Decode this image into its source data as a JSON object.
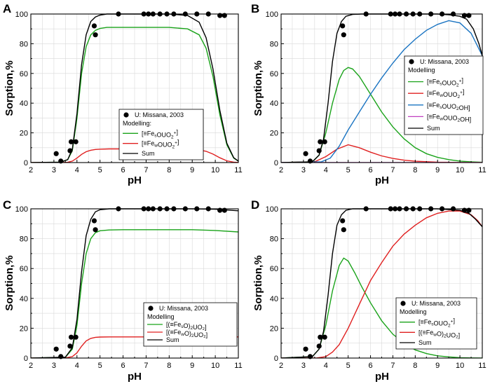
{
  "figure": {
    "x_axis_label": "pH",
    "y_axis_label": "Sorption,%",
    "x_ticks": [
      "2",
      "3",
      "4",
      "5",
      "6",
      "7",
      "8",
      "9",
      "10",
      "11"
    ],
    "y_ticks": [
      "0",
      "20",
      "40",
      "60",
      "80",
      "100"
    ],
    "xlim": [
      2,
      11
    ],
    "ylim": [
      0,
      100
    ]
  },
  "colors": {
    "data": "#000000",
    "sum": "#000000",
    "green": "#1aa31a",
    "red": "#e02020",
    "blue": "#1a74c2",
    "magenta": "#c040c0",
    "grid": "#d9d9d9"
  },
  "panels": [
    {
      "letter": "A",
      "legend": {
        "data_label": "U: Missana, 2003",
        "modelling_label": "Modelling:",
        "items": [
          {
            "text": "[≡Fe",
            "sub": "s",
            "rest": "OUO",
            "sub2": "2",
            "sup": "+",
            "end": "]",
            "color": "green"
          },
          {
            "text": "[≡Fe",
            "sub": "w",
            "rest": "OUO",
            "sub2": "2",
            "sup": "+",
            "end": "]",
            "color": "red"
          },
          {
            "text": "Sum",
            "sub": "",
            "rest": "",
            "sub2": "",
            "sup": "",
            "end": "",
            "color": "sum"
          }
        ]
      }
    },
    {
      "letter": "B",
      "legend": {
        "data_label": "U: Missana, 2003",
        "modelling_label": "Modelling",
        "items": [
          {
            "text": "[≡Fe",
            "sub": "s",
            "rest": "OUO",
            "sub2": "2",
            "sup": "+",
            "end": "]",
            "color": "green"
          },
          {
            "text": "[≡Fe",
            "sub": "w",
            "rest": "OUO",
            "sub2": "2",
            "sup": "+",
            "end": "]",
            "color": "red"
          },
          {
            "text": "[≡Fe",
            "sub": "s",
            "rest": "OUO",
            "sub2": "2",
            "sup": "",
            "end": "OH]",
            "color": "blue"
          },
          {
            "text": "[≡Fe",
            "sub": "w",
            "rest": "OUO",
            "sub2": "2",
            "sup": "",
            "end": "OH]",
            "color": "magenta"
          },
          {
            "text": "Sum",
            "sub": "",
            "rest": "",
            "sub2": "",
            "sup": "",
            "end": "",
            "color": "sum"
          }
        ]
      }
    },
    {
      "letter": "C",
      "legend": {
        "data_label": "U: Missana, 2003",
        "modelling_label": "Modelling",
        "items": [
          {
            "text": "[(≡Fe",
            "sub": "s",
            "rest": "O)",
            "sub2": "2",
            "sup": "",
            "end": "UO₂]",
            "color": "green"
          },
          {
            "text": "[(≡Fe",
            "sub": "w",
            "rest": "O)",
            "sub2": "2",
            "sup": "",
            "end": "UO₂]",
            "color": "red"
          },
          {
            "text": "Sum",
            "sub": "",
            "rest": "",
            "sub2": "",
            "sup": "",
            "end": "",
            "color": "sum"
          }
        ]
      }
    },
    {
      "letter": "D",
      "legend": {
        "data_label": "U: Missana, 2003",
        "modelling_label": "Modelling",
        "items": [
          {
            "text": "[≡Fe",
            "sub": "s",
            "rest": "OUO",
            "sub2": "2",
            "sup": "+",
            "end": "]",
            "color": "green"
          },
          {
            "text": "[(≡Fe",
            "sub": "w",
            "rest": "O)",
            "sub2": "2",
            "sup": "",
            "end": "UO₂]",
            "color": "red"
          },
          {
            "text": "Sum",
            "sub": "",
            "rest": "",
            "sub2": "",
            "sup": "",
            "end": "",
            "color": "sum"
          }
        ]
      }
    }
  ],
  "chart_data": [
    {
      "panel": "A",
      "type": "scatter+line",
      "xlabel": "pH",
      "ylabel": "Sorption,%",
      "xlim": [
        2,
        11
      ],
      "ylim": [
        0,
        100
      ],
      "points": {
        "name": "U: Missana, 2003",
        "x": [
          3.1,
          3.3,
          3.7,
          3.75,
          3.95,
          4.75,
          4.8,
          5.8,
          6.9,
          7.1,
          7.3,
          7.6,
          7.9,
          8.2,
          8.7,
          9.2,
          9.7,
          10.2,
          10.4
        ],
        "y": [
          6,
          1,
          8,
          14,
          14,
          92,
          86,
          100,
          100,
          100,
          100,
          100,
          100,
          100,
          100,
          100,
          100,
          99,
          99
        ]
      },
      "series": [
        {
          "name": "[≡FesOUO2+]",
          "color": "green",
          "x": [
            2,
            3.3,
            3.6,
            3.8,
            4.0,
            4.2,
            4.4,
            4.6,
            4.8,
            5.0,
            5.3,
            6,
            7,
            8,
            8.8,
            9.3,
            9.6,
            9.9,
            10.2,
            10.5,
            10.8,
            11
          ],
          "y": [
            0,
            0.3,
            2,
            8,
            30,
            60,
            78,
            86,
            89,
            90.3,
            91,
            91,
            91,
            91,
            90,
            86,
            77,
            58,
            32,
            12,
            3,
            1
          ]
        },
        {
          "name": "[≡FewOUO2+]",
          "color": "red",
          "x": [
            2,
            3.3,
            3.6,
            3.8,
            4.0,
            4.2,
            4.4,
            4.6,
            4.8,
            5.0,
            5.4,
            6,
            7,
            8,
            8.8,
            9.3,
            9.6,
            9.9,
            10.2,
            10.5,
            10.8,
            11
          ],
          "y": [
            0,
            0,
            0.2,
            1,
            3,
            5.5,
            7.3,
            8.3,
            8.8,
            9,
            9.2,
            9.2,
            9.2,
            9.2,
            9,
            8.5,
            7.6,
            5.7,
            3.2,
            1.2,
            0.3,
            0.1
          ]
        },
        {
          "name": "Sum",
          "color": "sum",
          "x": [
            2,
            3.3,
            3.6,
            3.8,
            4.0,
            4.2,
            4.4,
            4.6,
            4.8,
            5.0,
            5.3,
            6,
            7,
            8,
            8.8,
            9.3,
            9.6,
            9.9,
            10.2,
            10.5,
            10.8,
            11
          ],
          "y": [
            0,
            0.3,
            2,
            9,
            33,
            66,
            86,
            95,
            98,
            99.3,
            100,
            100,
            100,
            100,
            99,
            94.5,
            84,
            63,
            35,
            13,
            3.3,
            1
          ]
        }
      ]
    },
    {
      "panel": "B",
      "type": "scatter+line",
      "xlabel": "pH",
      "ylabel": "Sorption,%",
      "xlim": [
        2,
        11
      ],
      "ylim": [
        0,
        100
      ],
      "points": {
        "name": "U: Missana, 2003",
        "x": [
          3.1,
          3.3,
          3.7,
          3.75,
          3.95,
          4.75,
          4.8,
          5.8,
          6.9,
          7.1,
          7.3,
          7.6,
          7.9,
          8.2,
          8.7,
          9.2,
          9.7,
          10.2,
          10.4
        ],
        "y": [
          6,
          1,
          8,
          14,
          14,
          92,
          86,
          100,
          100,
          100,
          100,
          100,
          100,
          100,
          100,
          100,
          100,
          99,
          99
        ]
      },
      "series": [
        {
          "name": "[≡FesOUO2+]",
          "color": "green",
          "x": [
            2,
            3.4,
            3.7,
            4.0,
            4.3,
            4.6,
            4.8,
            5.0,
            5.2,
            5.5,
            6.0,
            6.5,
            7,
            7.5,
            8,
            8.5,
            9,
            9.5,
            10,
            10.5,
            11
          ],
          "y": [
            0,
            0.5,
            5,
            20,
            40,
            56,
            62,
            64,
            63,
            58,
            46,
            34,
            24,
            16,
            10,
            6,
            3.5,
            2,
            1,
            0.5,
            0.2
          ]
        },
        {
          "name": "[≡FewOUO2+]",
          "color": "red",
          "x": [
            2,
            3.5,
            4.0,
            4.5,
            5.0,
            5.5,
            6.0,
            6.5,
            7,
            7.5,
            8,
            9,
            10,
            11
          ],
          "y": [
            0,
            0.5,
            4,
            9,
            12,
            10,
            7,
            4.5,
            2.8,
            1.6,
            0.9,
            0.3,
            0.1,
            0
          ]
        },
        {
          "name": "[≡FesOUO2OH]",
          "color": "blue",
          "x": [
            2,
            3.8,
            4.2,
            4.6,
            5.0,
            5.5,
            6,
            6.5,
            7,
            7.5,
            8,
            8.5,
            9,
            9.5,
            10,
            10.5,
            11
          ],
          "y": [
            0,
            0.5,
            3,
            11,
            22,
            34,
            46,
            57,
            67,
            76,
            83,
            89,
            93,
            95.5,
            94,
            87,
            72
          ]
        },
        {
          "name": "[≡FewOUO2OH]",
          "color": "magenta",
          "x": [
            2,
            11
          ],
          "y": [
            0,
            0
          ]
        },
        {
          "name": "Sum",
          "color": "sum",
          "x": [
            2,
            3.4,
            3.7,
            3.9,
            4.1,
            4.3,
            4.5,
            4.7,
            4.9,
            5.2,
            5.6,
            6,
            7,
            8,
            9,
            9.5,
            10,
            10.3,
            10.6,
            10.85,
            11
          ],
          "y": [
            0,
            0.5,
            5,
            16,
            40,
            68,
            87,
            95,
            98.5,
            99.7,
            100,
            100,
            100,
            100,
            100,
            99.5,
            98.5,
            96.5,
            90,
            80,
            72
          ]
        }
      ]
    },
    {
      "panel": "C",
      "type": "scatter+line",
      "xlabel": "pH",
      "ylabel": "Sorption,%",
      "xlim": [
        2,
        11
      ],
      "ylim": [
        0,
        100
      ],
      "points": {
        "name": "U: Missana, 2003",
        "x": [
          3.1,
          3.3,
          3.7,
          3.75,
          3.95,
          4.75,
          4.8,
          5.8,
          6.9,
          7.1,
          7.3,
          7.6,
          7.9,
          8.2,
          8.7,
          9.2,
          9.7,
          10.2,
          10.4
        ],
        "y": [
          6,
          1,
          8,
          14,
          14,
          92,
          86,
          100,
          100,
          100,
          100,
          100,
          100,
          100,
          100,
          100,
          100,
          99,
          99
        ]
      },
      "series": [
        {
          "name": "[(≡FesO)2UO2]",
          "color": "green",
          "x": [
            2,
            3.5,
            3.8,
            4.0,
            4.2,
            4.4,
            4.6,
            4.8,
            5.0,
            5.4,
            6,
            7,
            8,
            9,
            10,
            11
          ],
          "y": [
            0,
            0.5,
            6,
            22,
            50,
            70,
            80,
            84,
            85.3,
            85.8,
            86,
            86,
            86,
            86,
            85.5,
            84.5
          ]
        },
        {
          "name": "[(≡FewO)2UO2]",
          "color": "red",
          "x": [
            2,
            3.5,
            3.8,
            4.0,
            4.2,
            4.4,
            4.6,
            4.8,
            5.0,
            5.4,
            6,
            7,
            8,
            9,
            10,
            11
          ],
          "y": [
            0,
            0.1,
            1,
            3.5,
            8,
            11.5,
            13.2,
            13.9,
            14.1,
            14.2,
            14.2,
            14.2,
            14.2,
            14.2,
            14.2,
            14.2
          ]
        },
        {
          "name": "Sum",
          "color": "sum",
          "x": [
            2,
            3.5,
            3.8,
            4.0,
            4.2,
            4.4,
            4.6,
            4.8,
            5.0,
            5.4,
            6,
            7,
            8,
            9,
            10,
            11
          ],
          "y": [
            0,
            0.6,
            7,
            26,
            58,
            82,
            93,
            98,
            99.4,
            100,
            100,
            100,
            100,
            100,
            99.7,
            98.7
          ]
        }
      ]
    },
    {
      "panel": "D",
      "type": "scatter+line",
      "xlabel": "pH",
      "ylabel": "Sorption,%",
      "xlim": [
        2,
        11
      ],
      "ylim": [
        0,
        100
      ],
      "points": {
        "name": "U: Missana, 2003",
        "x": [
          3.1,
          3.3,
          3.7,
          3.75,
          3.95,
          4.75,
          4.8,
          5.8,
          6.9,
          7.1,
          7.3,
          7.6,
          7.9,
          8.2,
          8.7,
          9.2,
          9.7,
          10.2,
          10.4
        ],
        "y": [
          6,
          1,
          8,
          14,
          14,
          92,
          86,
          100,
          100,
          100,
          100,
          100,
          100,
          100,
          100,
          100,
          100,
          99,
          99
        ]
      },
      "series": [
        {
          "name": "[≡FesOUO2+]",
          "color": "green",
          "x": [
            2,
            3.4,
            3.7,
            4.0,
            4.3,
            4.6,
            4.8,
            5.0,
            5.3,
            5.6,
            6,
            6.5,
            7,
            7.5,
            8,
            8.5,
            9,
            9.5,
            10,
            10.5,
            11
          ],
          "y": [
            0,
            1,
            6,
            22,
            45,
            62,
            67,
            65,
            57,
            48,
            37,
            25,
            16,
            10,
            5.5,
            3,
            1.5,
            0.8,
            0.3,
            0.1,
            0
          ]
        },
        {
          "name": "[(≡FewO)2UO2]",
          "color": "red",
          "x": [
            2,
            3.6,
            4.0,
            4.3,
            4.6,
            5.0,
            5.5,
            6,
            6.5,
            7,
            7.5,
            8,
            8.5,
            9,
            9.5,
            10,
            10.5,
            10.8,
            11
          ],
          "y": [
            0,
            0.1,
            1,
            4,
            9,
            20,
            36,
            52,
            64,
            75,
            83,
            89,
            94,
            97,
            98.5,
            98.5,
            96,
            92,
            88
          ]
        },
        {
          "name": "Sum",
          "color": "sum",
          "x": [
            2,
            3.4,
            3.7,
            3.9,
            4.1,
            4.3,
            4.5,
            4.7,
            4.9,
            5.2,
            5.6,
            6,
            7,
            8,
            9,
            9.5,
            10,
            10.4,
            10.7,
            11
          ],
          "y": [
            0,
            1,
            6,
            18,
            42,
            70,
            89,
            96,
            99,
            100,
            100,
            100,
            100,
            100,
            100,
            99.5,
            99,
            97,
            93,
            88
          ]
        }
      ]
    }
  ]
}
